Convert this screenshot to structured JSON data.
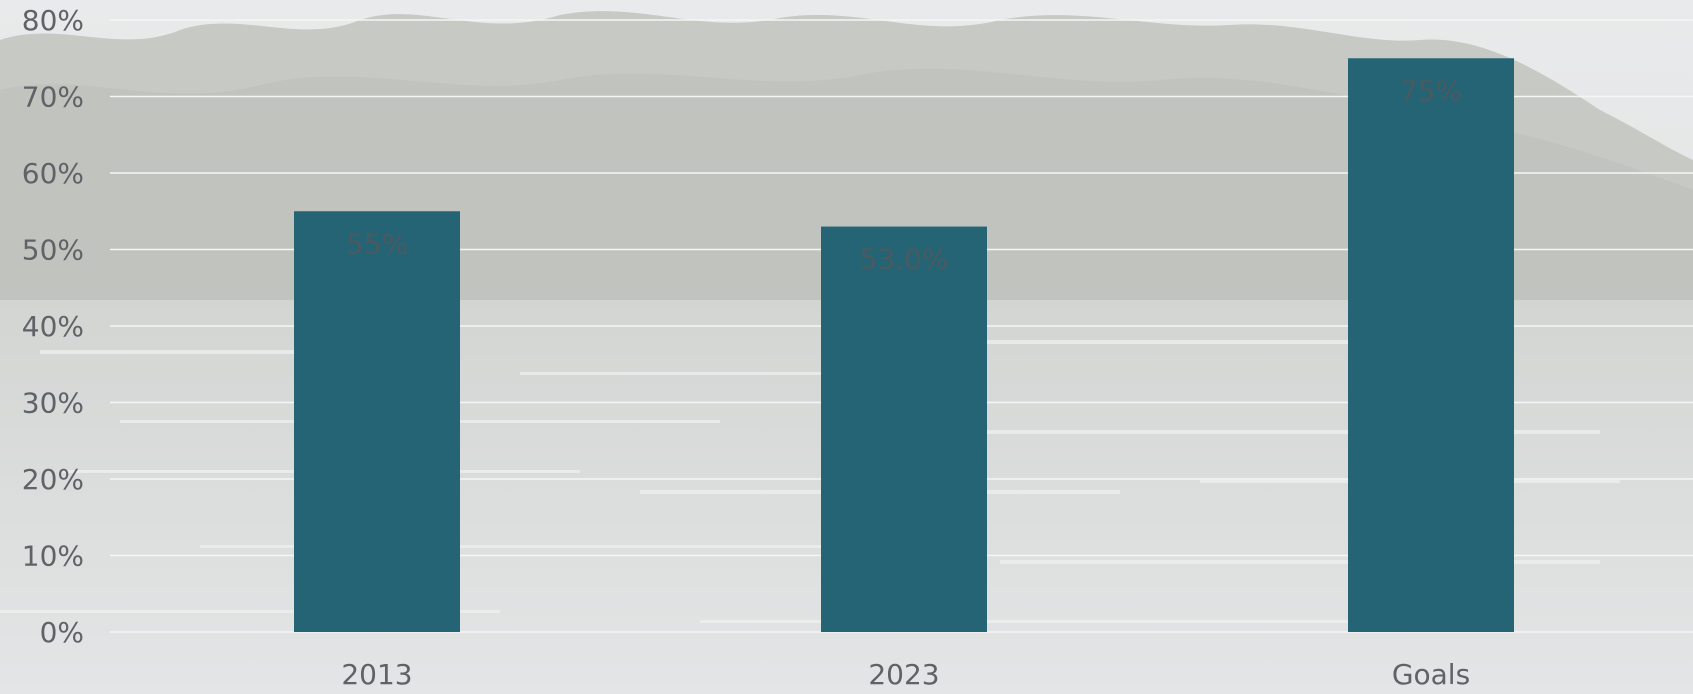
{
  "chart_data": {
    "type": "bar",
    "categories": [
      "2013",
      "2023",
      "Goals"
    ],
    "values": [
      55,
      53.0,
      75
    ],
    "data_labels": [
      "55%",
      "53.0%",
      "75%"
    ],
    "title": "",
    "xlabel": "",
    "ylabel": "",
    "ylim": [
      0,
      80
    ],
    "yticks": [
      0,
      10,
      20,
      30,
      40,
      50,
      60,
      70,
      80
    ],
    "ytick_labels": [
      "0%",
      "10%",
      "20%",
      "30%",
      "40%",
      "50%",
      "60%",
      "70%",
      "80%"
    ],
    "grid": true,
    "legend": "none",
    "bar_color": "#256475",
    "grid_color": "#f5f5f5"
  }
}
